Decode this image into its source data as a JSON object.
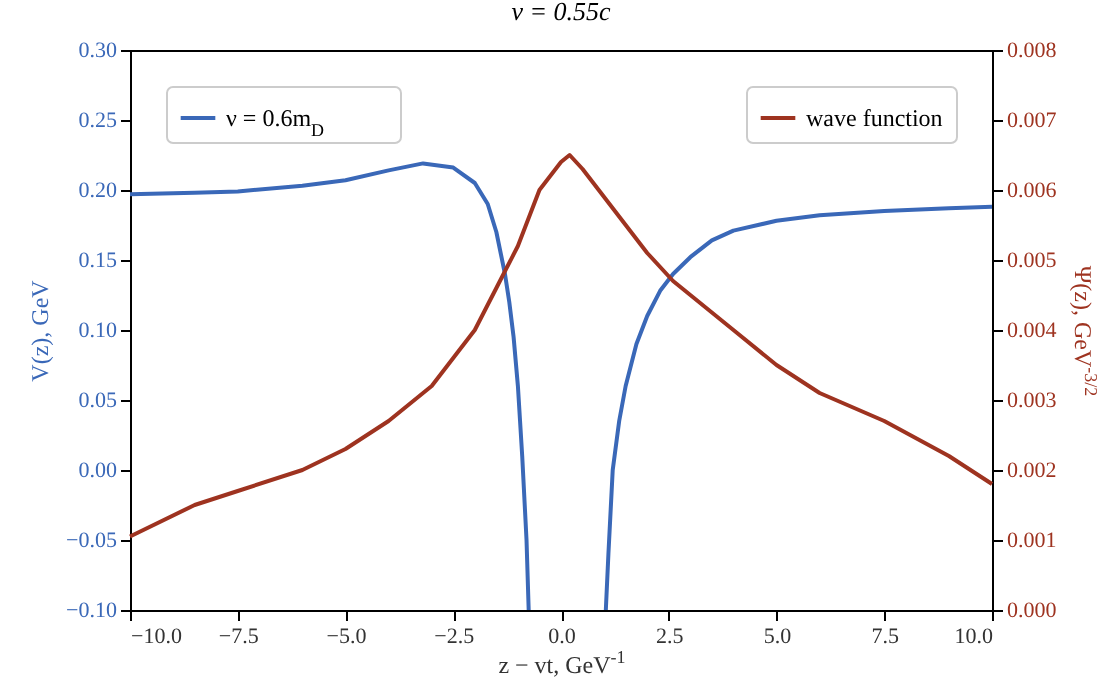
{
  "chart_data": {
    "type": "line",
    "title": "v = 0.55c",
    "xlabel": "z − vt, GeV$^{-1}$",
    "ylabel": "V(z), GeV",
    "y2label": "Ψ(z), GeV$^{-3/2}$",
    "xlim": [
      -10,
      10
    ],
    "xticks": [
      {
        "value": -10,
        "label": "−10.0"
      },
      {
        "value": -7.5,
        "label": "−7.5"
      },
      {
        "value": -5,
        "label": "−5.0"
      },
      {
        "value": -2.5,
        "label": "−2.5"
      },
      {
        "value": 0,
        "label": "0.0"
      },
      {
        "value": 2.5,
        "label": "2.5"
      },
      {
        "value": 5,
        "label": "5.0"
      },
      {
        "value": 7.5,
        "label": "7.5"
      },
      {
        "value": 10,
        "label": "10.0"
      }
    ],
    "ylim": [
      -0.1,
      0.3
    ],
    "yticks": [
      {
        "value": -0.1,
        "label": "−0.10"
      },
      {
        "value": -0.05,
        "label": "−0.05"
      },
      {
        "value": 0,
        "label": "0.00"
      },
      {
        "value": 0.05,
        "label": "0.05"
      },
      {
        "value": 0.1,
        "label": "0.10"
      },
      {
        "value": 0.15,
        "label": "0.15"
      },
      {
        "value": 0.2,
        "label": "0.20"
      },
      {
        "value": 0.25,
        "label": "0.25"
      },
      {
        "value": 0.3,
        "label": "0.30"
      }
    ],
    "y2lim": [
      0,
      0.008
    ],
    "y2ticks": [
      {
        "value": 0,
        "label": "0.000"
      },
      0.001,
      0.002,
      0.003,
      0.004,
      0.005,
      0.006,
      0.007,
      0.008
    ],
    "grid": false,
    "legend": "top",
    "line_style": "solid",
    "marker": "none",
    "series": [
      {
        "name": "ν = 0.6m$_{D}$",
        "color": "#3a68b8",
        "x": [
          -10,
          -8.5,
          -7.5,
          -6,
          -5,
          -4,
          -3.2,
          -2.5,
          -2,
          -1.7,
          -1.5,
          -1.3,
          -1.2,
          -1.1,
          -1,
          -0.9,
          -0.8,
          -0.75,
          0,
          1.04,
          1.1,
          1.2,
          1.35,
          1.5,
          1.75,
          2,
          2.3,
          2.6,
          3,
          3.5,
          4,
          5,
          6,
          7.5,
          9,
          10
        ],
        "values": [
          0.197,
          0.198,
          0.199,
          0.203,
          0.207,
          0.214,
          0.219,
          0.216,
          0.205,
          0.19,
          0.17,
          0.14,
          0.12,
          0.095,
          0.06,
          0.01,
          -0.05,
          -0.1,
          null,
          -0.1,
          -0.06,
          0.0,
          0.035,
          0.06,
          0.09,
          0.11,
          0.128,
          0.14,
          0.152,
          0.164,
          0.171,
          0.178,
          0.182,
          0.185,
          0.187,
          0.188
        ]
      },
      {
        "name": "wave function",
        "color": "#9e3320",
        "axis": "y2",
        "x": [
          -10,
          -8.5,
          -7.5,
          -6,
          -5,
          -4,
          -3,
          -2.5,
          -2,
          -1.5,
          -1,
          -0.5,
          0,
          0.2,
          0.5,
          1,
          1.5,
          2,
          2.6,
          3,
          4,
          5,
          6,
          7.5,
          9,
          10
        ],
        "values": [
          0.00105,
          0.0015,
          0.0017,
          0.002,
          0.0023,
          0.0027,
          0.0032,
          0.0036,
          0.004,
          0.0046,
          0.0052,
          0.006,
          0.0064,
          0.0065,
          0.0063,
          0.0059,
          0.0055,
          0.0051,
          0.0047,
          0.0045,
          0.004,
          0.0035,
          0.0031,
          0.0027,
          0.0022,
          0.0018
        ]
      }
    ]
  }
}
